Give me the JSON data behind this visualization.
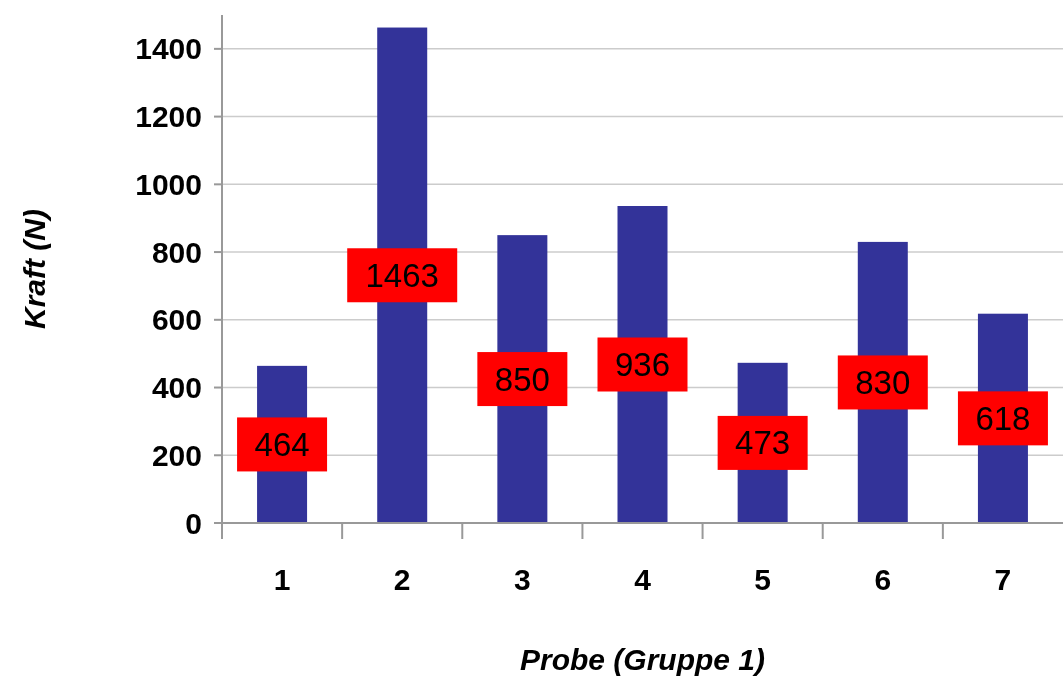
{
  "chart_data": {
    "type": "bar",
    "xlabel": "Probe (Gruppe 1)",
    "ylabel": "Kraft (N)",
    "categories": [
      "1",
      "2",
      "3",
      "4",
      "5",
      "6",
      "7"
    ],
    "values": [
      464,
      1463,
      850,
      936,
      473,
      830,
      618
    ],
    "color": "#333399",
    "data_labels": true,
    "ylim": [
      0,
      1500
    ],
    "yticks": [
      0,
      200,
      400,
      600,
      800,
      1000,
      1200,
      1400
    ],
    "grid": "y"
  }
}
